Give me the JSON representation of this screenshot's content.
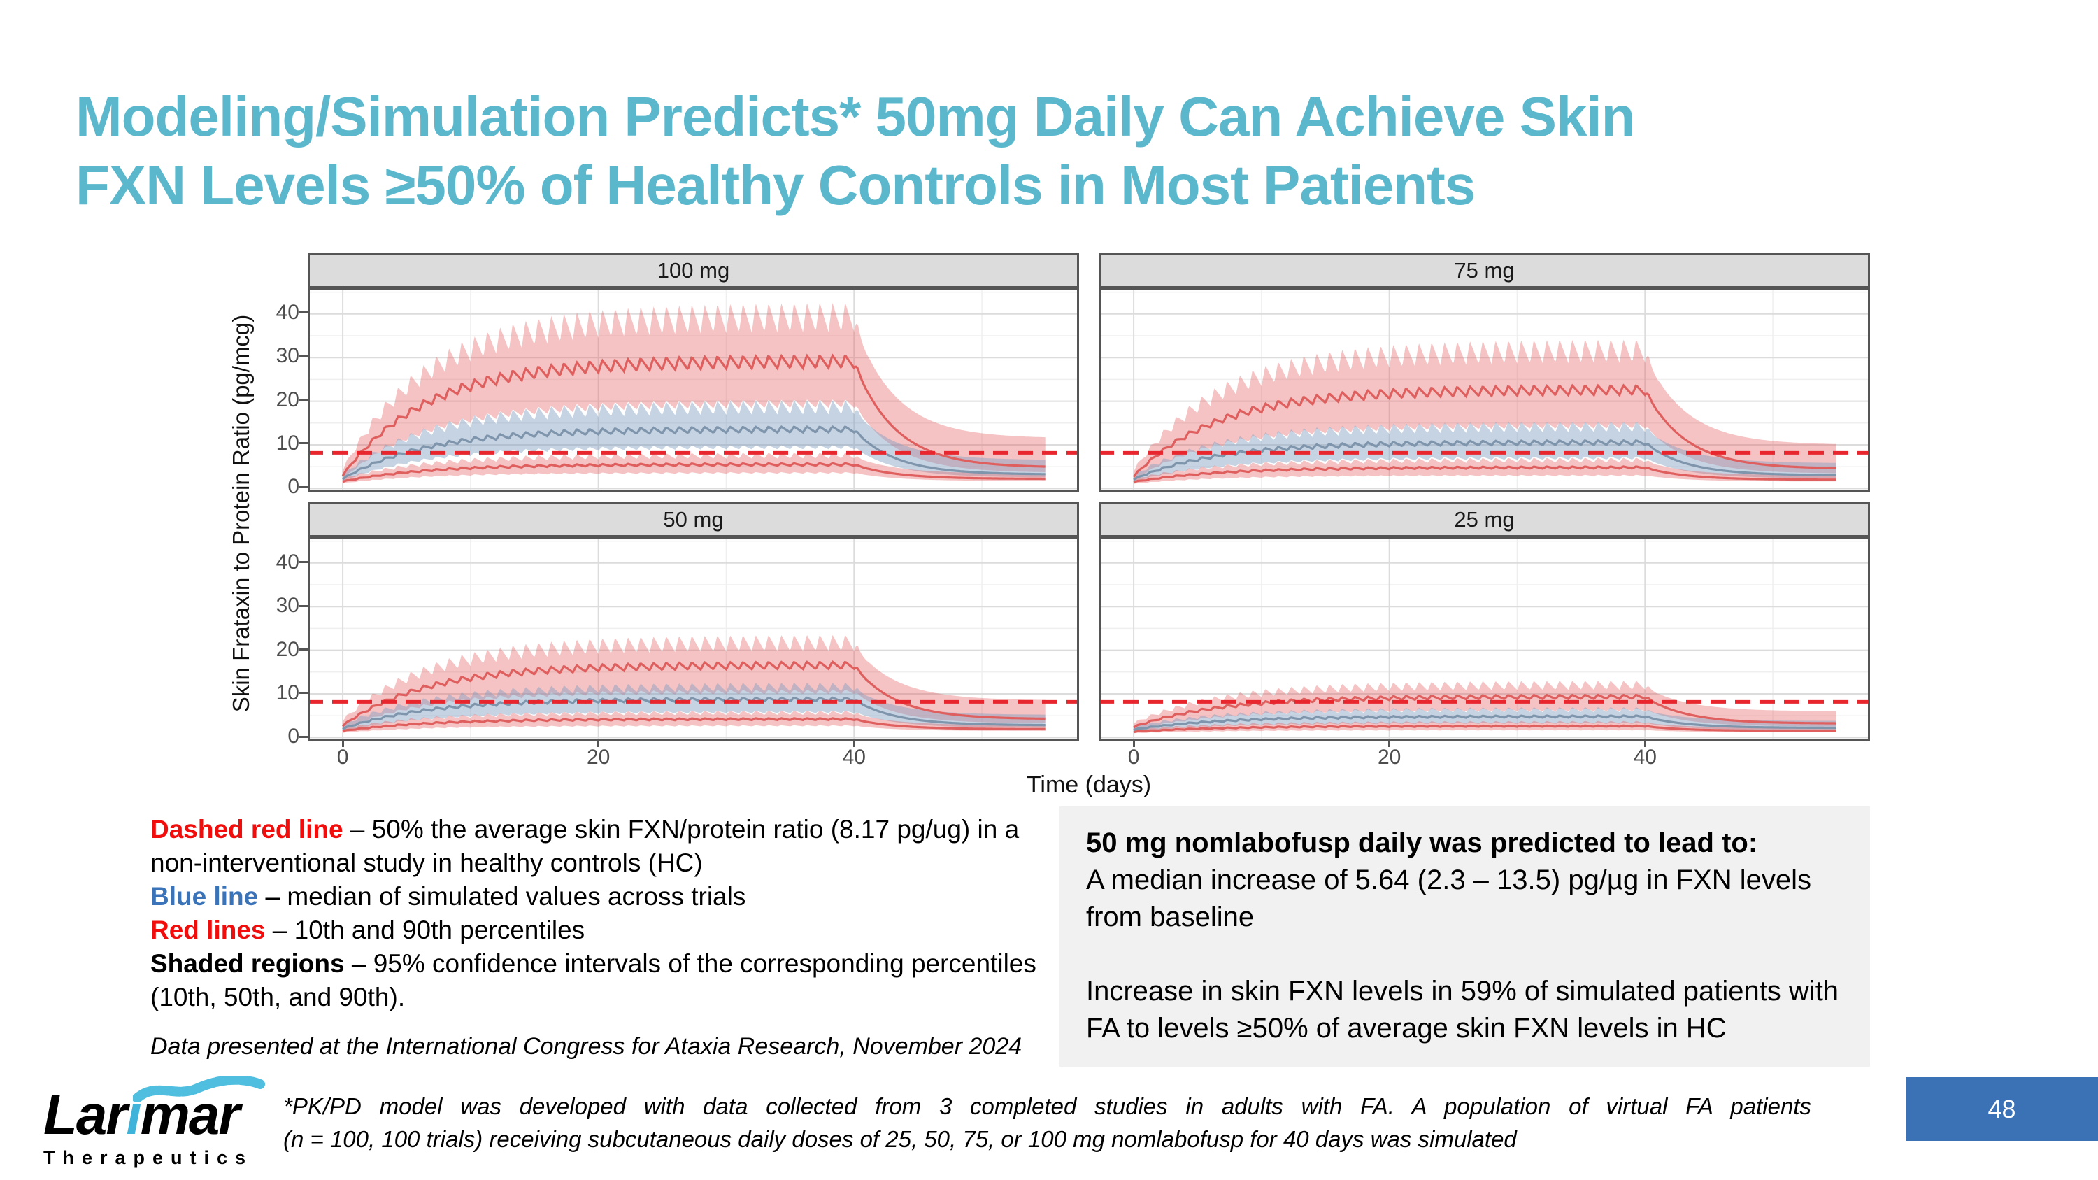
{
  "slide": {
    "title": {
      "line1": "Modeling/Simulation Predicts* 50mg Daily Can Achieve Skin",
      "line2": "FXN Levels ≥50% of Healthy Controls in Most Patients",
      "color": "#5BB7CC"
    }
  },
  "chart_data": {
    "type": "line",
    "description": "2x2 faceted simulation of skin frataxin-to-protein ratio over time for four daily doses of nomlabofusp; median (blue), 10th/90th percentile (red) lines with 95% CI shaded bands and dashed reference line at 50% of healthy-control average",
    "xlabel": "Time (days)",
    "ylabel": "Skin Frataxin to Protein Ratio (pg/mcg)",
    "x_ticks": [
      0,
      20,
      40
    ],
    "x_minor": [
      10,
      30,
      50
    ],
    "y_ticks": [
      0,
      10,
      20,
      30,
      40
    ],
    "y_minor": [
      5,
      15,
      25,
      35,
      45
    ],
    "xlim": [
      -2.74,
      57.6
    ],
    "ylim": [
      -0.9,
      45.9
    ],
    "reference_line": {
      "y": 8.17,
      "style": "dashed",
      "color": "#E8262E",
      "meaning": "50% of the average skin FXN/protein ratio (8.17 pg/ug) in healthy controls"
    },
    "dosing": {
      "start_day": 0,
      "end_day": 40,
      "sim_end_day": 55
    },
    "series_colors": {
      "percentile_line": "#DF5F5F",
      "median_line": "#7E95AC",
      "percentile_band": "rgba(228,98,98,0.38)",
      "median_band": "rgba(128,158,192,0.45)"
    },
    "model": {
      "rise_tau": 6.5,
      "decay_tau": 3.2,
      "line_osc": 0.1,
      "band_hi_osc": 0.18,
      "band_lo_osc": 0.1
    },
    "panels": [
      {
        "label": "100 mg",
        "p90": {
          "line": [
            3.0,
            29.0,
            4.8
          ],
          "lo": [
            2.2,
            19.5,
            3.6
          ],
          "hi": [
            4.2,
            38.0,
            11.5
          ]
        },
        "p50": {
          "line": [
            2.2,
            13.5,
            3.2
          ],
          "lo": [
            1.7,
            9.5,
            2.5
          ],
          "hi": [
            3.0,
            18.0,
            6.5
          ]
        },
        "p10": {
          "line": [
            1.6,
            5.5,
            2.2
          ],
          "lo": [
            1.2,
            3.6,
            1.7
          ],
          "hi": [
            2.2,
            7.3,
            3.4
          ]
        }
      },
      {
        "label": "75 mg",
        "p90": {
          "line": [
            2.8,
            22.5,
            4.5
          ],
          "lo": [
            2.0,
            14.5,
            3.4
          ],
          "hi": [
            4.0,
            30.5,
            10.0
          ]
        },
        "p50": {
          "line": [
            2.1,
            10.5,
            3.0
          ],
          "lo": [
            1.6,
            7.0,
            2.3
          ],
          "hi": [
            2.9,
            13.7,
            5.8
          ]
        },
        "p10": {
          "line": [
            1.5,
            4.8,
            2.0
          ],
          "lo": [
            1.1,
            3.0,
            1.6
          ],
          "hi": [
            2.1,
            6.3,
            3.0
          ]
        }
      },
      {
        "label": "50 mg",
        "p90": {
          "line": [
            2.7,
            16.5,
            4.2
          ],
          "lo": [
            1.9,
            10.5,
            3.2
          ],
          "hi": [
            3.8,
            21.0,
            8.5
          ]
        },
        "p50": {
          "line": [
            2.0,
            8.7,
            2.8
          ],
          "lo": [
            1.5,
            5.9,
            2.2
          ],
          "hi": [
            2.8,
            11.2,
            5.2
          ]
        },
        "p10": {
          "line": [
            1.5,
            4.2,
            1.9
          ],
          "lo": [
            1.1,
            2.7,
            1.5
          ],
          "hi": [
            2.0,
            5.5,
            2.8
          ]
        }
      },
      {
        "label": "25 mg",
        "p90": {
          "line": [
            2.4,
            9.3,
            3.2
          ],
          "lo": [
            1.7,
            6.4,
            2.5
          ],
          "hi": [
            3.2,
            11.6,
            6.0
          ]
        },
        "p50": {
          "line": [
            1.8,
            4.8,
            2.2
          ],
          "lo": [
            1.4,
            3.3,
            1.7
          ],
          "hi": [
            2.4,
            6.2,
            3.8
          ]
        },
        "p10": {
          "line": [
            1.3,
            2.6,
            1.5
          ],
          "lo": [
            1.0,
            1.7,
            1.2
          ],
          "hi": [
            1.7,
            3.4,
            2.2
          ]
        }
      }
    ]
  },
  "legend": {
    "dashed_label": "Dashed red line",
    "dashed_text": " – 50% the average skin FXN/protein ratio (8.17 pg/ug) in a non-interventional study in healthy controls (HC)",
    "blue_label": "Blue line",
    "blue_text": " – median of simulated values across trials",
    "red_label": "Red lines",
    "red_text": " – 10th and 90th percentiles",
    "shaded_label": "Shaded regions",
    "shaded_text": " – 95% confidence intervals of the corresponding percentiles (10th, 50th, and 90th).",
    "source": "Data presented at the International Congress for Ataxia Research, November 2024",
    "colors": {
      "red": "#F20D0D",
      "blue": "#3B73B9"
    }
  },
  "info_box": {
    "heading": "50 mg nomlabofusp daily was predicted to lead to:",
    "line1": "A median increase of 5.64 (2.3 – 13.5) pg/µg in FXN levels from baseline",
    "line2": "Increase in skin FXN levels in 59% of simulated patients with FA  to levels ≥50% of average skin FXN levels in HC"
  },
  "footer": {
    "logo_part1": "Lar",
    "logo_i": "i",
    "logo_part2": "mar",
    "logo_sub": "Therapeutics",
    "note_line1": "*PK/PD model was developed with data collected from 3 completed studies in adults with FA. A population of virtual FA patients",
    "note_line2": "(n = 100, 100 trials) receiving subcutaneous daily doses of 25, 50, 75, or 100 mg nomlabofusp for 40 days was simulated",
    "page_number": "48"
  }
}
